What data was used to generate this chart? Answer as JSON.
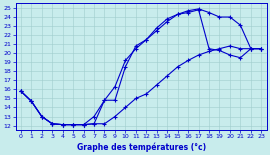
{
  "xlabel": "Graphe des températures (°c)",
  "bg_color": "#c8ecec",
  "line_color": "#0000cc",
  "grid_color": "#a0cccc",
  "xlim": [
    -0.5,
    23.5
  ],
  "ylim": [
    11.5,
    25.5
  ],
  "xticks": [
    0,
    1,
    2,
    3,
    4,
    5,
    6,
    7,
    8,
    9,
    10,
    11,
    12,
    13,
    14,
    15,
    16,
    17,
    18,
    19,
    20,
    21,
    22,
    23
  ],
  "yticks": [
    12,
    13,
    14,
    15,
    16,
    17,
    18,
    19,
    20,
    21,
    22,
    23,
    24,
    25
  ],
  "line1_x": [
    0,
    1,
    2,
    3,
    4,
    5,
    6,
    7,
    8,
    9,
    10,
    11,
    12,
    13,
    14,
    15,
    16,
    17,
    18,
    19,
    20,
    21,
    22,
    23
  ],
  "line1_y": [
    15.8,
    14.7,
    13.0,
    12.2,
    12.1,
    12.1,
    12.1,
    12.2,
    14.8,
    16.3,
    19.2,
    20.5,
    21.5,
    22.8,
    23.8,
    24.3,
    24.7,
    24.9,
    24.5,
    24.0,
    24.0,
    23.1,
    20.5,
    20.5
  ],
  "line2_x": [
    0,
    1,
    2,
    3,
    4,
    5,
    6,
    7,
    8,
    9,
    10,
    11,
    12,
    13,
    14,
    15,
    16,
    17,
    18,
    19,
    20,
    21,
    22,
    23
  ],
  "line2_y": [
    15.8,
    14.7,
    13.0,
    12.2,
    12.1,
    12.1,
    12.1,
    13.0,
    14.8,
    14.8,
    18.5,
    20.8,
    21.5,
    22.5,
    23.5,
    24.3,
    24.5,
    24.8,
    20.5,
    20.3,
    19.8,
    19.5,
    20.5,
    20.5
  ],
  "line3_x": [
    0,
    1,
    2,
    3,
    4,
    5,
    6,
    7,
    8,
    9,
    10,
    11,
    12,
    13,
    14,
    15,
    16,
    17,
    18,
    19,
    20,
    21,
    22,
    23
  ],
  "line3_y": [
    15.8,
    14.7,
    13.0,
    12.2,
    12.1,
    12.1,
    12.1,
    12.2,
    12.2,
    13.0,
    14.0,
    15.0,
    15.5,
    16.5,
    17.5,
    18.5,
    19.2,
    19.8,
    20.2,
    20.5,
    20.8,
    20.5,
    20.5,
    20.5
  ]
}
